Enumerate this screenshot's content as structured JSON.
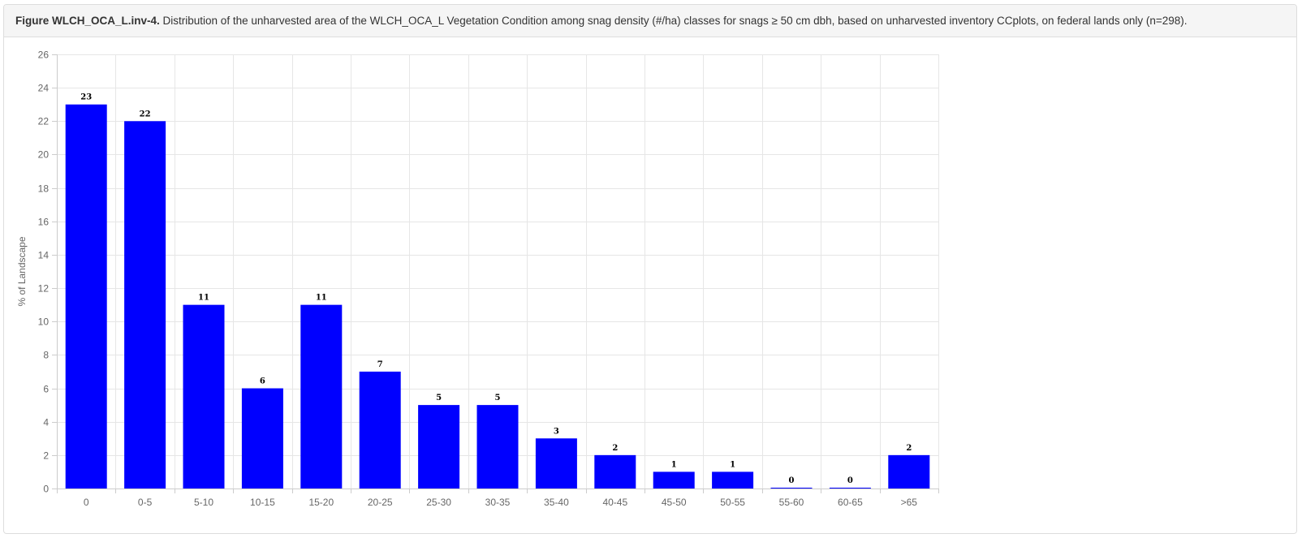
{
  "caption": {
    "label": "Figure WLCH_OCA_L.inv-4.",
    "text": "Distribution of the unharvested area of the WLCH_OCA_L Vegetation Condition among snag density (#/ha) classes for snags ≥ 50 cm dbh, based on unharvested inventory CCplots, on federal lands only (n=298)."
  },
  "chart_data": {
    "type": "bar",
    "title": "",
    "xlabel": "",
    "ylabel": "% of Landscape",
    "categories": [
      "0",
      "0-5",
      "5-10",
      "10-15",
      "15-20",
      "20-25",
      "25-30",
      "30-35",
      "35-40",
      "40-45",
      "45-50",
      "50-55",
      "55-60",
      "60-65",
      ">65"
    ],
    "series": [
      {
        "values": [
          23,
          22,
          11,
          6,
          11,
          7,
          5,
          5,
          3,
          2,
          1,
          1,
          0,
          0,
          2
        ]
      }
    ],
    "data_labels": [
      "23",
      "22",
      "11",
      "6",
      "11",
      "7",
      "5",
      "5",
      "3",
      "2",
      "1",
      "1",
      "0",
      "0",
      "2"
    ],
    "ylim": [
      0,
      26
    ],
    "yticks": [
      0,
      2,
      4,
      6,
      8,
      10,
      12,
      14,
      16,
      18,
      20,
      22,
      24,
      26
    ],
    "grid": true,
    "legend": "none",
    "bar_color": "#0000ff"
  }
}
